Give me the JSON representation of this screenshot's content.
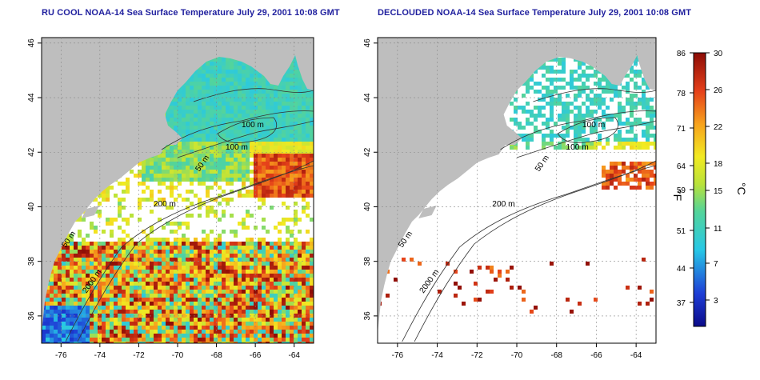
{
  "panels": [
    {
      "title": "RU COOL NOAA-14 Sea Surface Temperature July 29, 2001 10:08 GMT",
      "mode": "full",
      "contour_labels": [
        "100 m",
        "100 m",
        "50 m",
        "200 m",
        "50 m",
        "2000 m"
      ]
    },
    {
      "title": "DECLOUDED NOAA-14 Sea Surface Temperature July 29, 2001 10:08 GMT",
      "mode": "declouded",
      "contour_labels": [
        "100 m",
        "100 m",
        "50 m",
        "200 m",
        "50 m",
        "2000 m"
      ]
    }
  ],
  "axes": {
    "x_ticks": [
      "-76",
      "-74",
      "-72",
      "-70",
      "-68",
      "-66",
      "-64"
    ],
    "y_ticks": [
      "36",
      "38",
      "40",
      "42",
      "44",
      "46"
    ]
  },
  "colorbar": {
    "fahrenheit_ticks": [
      "86",
      "78",
      "71",
      "64",
      "59",
      "51",
      "44",
      "37"
    ],
    "celsius_ticks": [
      "30",
      "26",
      "22",
      "18",
      "15",
      "11",
      "7",
      "3"
    ],
    "fahrenheit_unit": "°F",
    "celsius_unit": "°C"
  },
  "colors": {
    "land": "#bebebe",
    "title": "#1f1f9e",
    "warm": "#cc1a0e",
    "cold": "#1a2dbd"
  }
}
